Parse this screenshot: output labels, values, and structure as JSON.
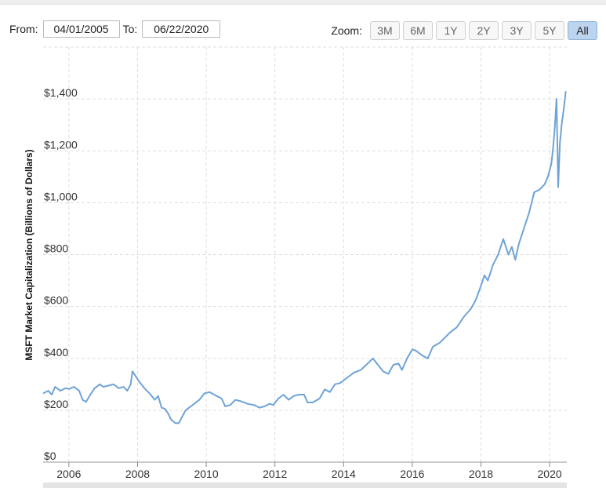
{
  "range": {
    "from_label": "From:",
    "from_value": "04/01/2005",
    "to_label": "To:",
    "to_value": "06/22/2020"
  },
  "zoom": {
    "label": "Zoom:",
    "buttons": [
      "3M",
      "6M",
      "1Y",
      "2Y",
      "3Y",
      "5Y",
      "All"
    ],
    "active": "All"
  },
  "colors": {
    "line": "#6fa3d6",
    "grid": "#dddddd"
  },
  "chart_data": {
    "type": "line",
    "ylabel": "MSFT Market Capitalization (Billions of Dollars)",
    "xlim": [
      2005.25,
      2020.5
    ],
    "ylim": [
      0,
      1600
    ],
    "yticks": [
      0,
      200,
      400,
      600,
      800,
      1000,
      1200,
      1400
    ],
    "ytick_labels": [
      "$0",
      "$200",
      "$400",
      "$600",
      "$800",
      "$1,000",
      "$1,200",
      "$1,400"
    ],
    "xticks": [
      2006,
      2008,
      2010,
      2012,
      2014,
      2016,
      2018,
      2020
    ],
    "xtick_labels": [
      "2006",
      "2008",
      "2010",
      "2012",
      "2014",
      "2016",
      "2018",
      "2020"
    ],
    "grid": true,
    "series": [
      {
        "x": [
          2005.25,
          2005.4,
          2005.5,
          2005.6,
          2005.75,
          2005.9,
          2006.0,
          2006.15,
          2006.3,
          2006.4,
          2006.5,
          2006.6,
          2006.75,
          2006.9,
          2007.0,
          2007.15,
          2007.3,
          2007.45,
          2007.6,
          2007.7,
          2007.8,
          2007.85,
          2007.95,
          2008.05,
          2008.2,
          2008.35,
          2008.5,
          2008.6,
          2008.7,
          2008.8,
          2008.9,
          2008.97,
          2009.1,
          2009.2,
          2009.4,
          2009.6,
          2009.8,
          2009.95,
          2010.1,
          2010.3,
          2010.45,
          2010.55,
          2010.7,
          2010.85,
          2011.0,
          2011.2,
          2011.4,
          2011.55,
          2011.7,
          2011.85,
          2011.95,
          2012.1,
          2012.25,
          2012.4,
          2012.55,
          2012.7,
          2012.85,
          2012.95,
          2013.1,
          2013.3,
          2013.45,
          2013.6,
          2013.75,
          2013.9,
          2014.1,
          2014.3,
          2014.5,
          2014.7,
          2014.85,
          2015.0,
          2015.15,
          2015.3,
          2015.45,
          2015.6,
          2015.7,
          2015.85,
          2016.0,
          2016.1,
          2016.3,
          2016.45,
          2016.6,
          2016.8,
          2016.95,
          2017.1,
          2017.3,
          2017.5,
          2017.7,
          2017.85,
          2018.0,
          2018.1,
          2018.2,
          2018.35,
          2018.5,
          2018.65,
          2018.8,
          2018.9,
          2019.0,
          2019.1,
          2019.25,
          2019.4,
          2019.55,
          2019.7,
          2019.85,
          2019.95,
          2020.05,
          2020.1,
          2020.15,
          2020.2,
          2020.25,
          2020.3,
          2020.35,
          2020.42,
          2020.47
        ],
        "y": [
          265,
          275,
          260,
          290,
          275,
          285,
          282,
          290,
          275,
          240,
          232,
          255,
          285,
          300,
          290,
          295,
          300,
          285,
          290,
          275,
          300,
          350,
          330,
          310,
          285,
          265,
          240,
          255,
          210,
          205,
          185,
          165,
          150,
          150,
          200,
          220,
          240,
          265,
          270,
          255,
          245,
          215,
          220,
          240,
          235,
          225,
          220,
          210,
          215,
          225,
          220,
          245,
          260,
          240,
          255,
          260,
          260,
          230,
          230,
          245,
          280,
          270,
          300,
          305,
          325,
          345,
          355,
          380,
          400,
          375,
          350,
          340,
          375,
          380,
          355,
          400,
          435,
          430,
          410,
          400,
          445,
          460,
          480,
          500,
          520,
          560,
          590,
          625,
          680,
          720,
          700,
          760,
          800,
          860,
          800,
          830,
          780,
          840,
          900,
          960,
          1040,
          1050,
          1070,
          1100,
          1150,
          1210,
          1290,
          1400,
          1060,
          1230,
          1300,
          1370,
          1430
        ]
      }
    ]
  }
}
